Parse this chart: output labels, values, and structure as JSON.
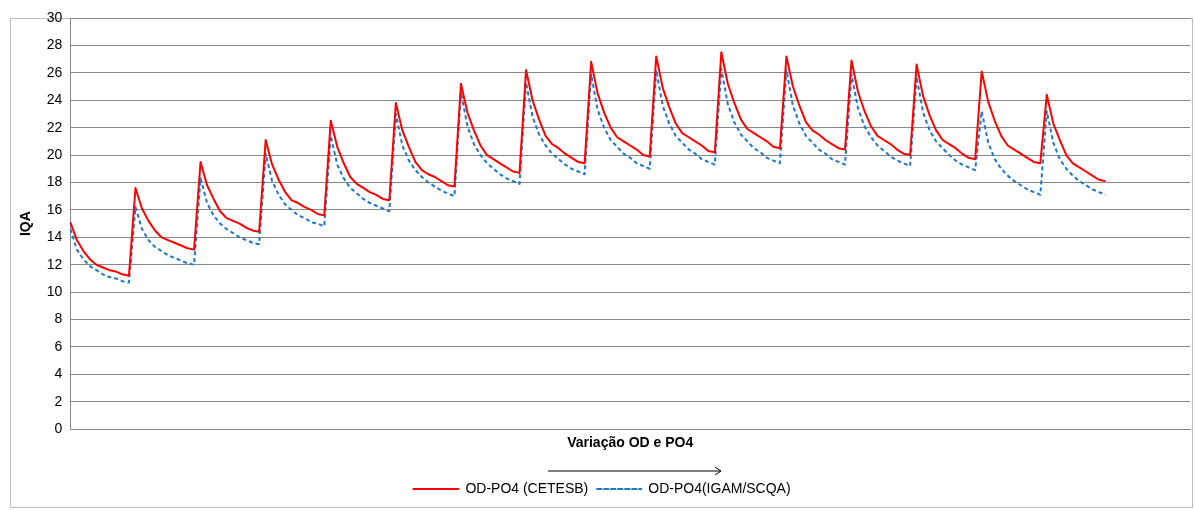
{
  "chart_data": {
    "type": "line",
    "xlabel": "Variação OD e PO4",
    "ylabel": "IQA",
    "categories": [
      null,
      null,
      null,
      null,
      null,
      null,
      null,
      null,
      null,
      null,
      null,
      null,
      null,
      null,
      null,
      null,
      null,
      null,
      null,
      null,
      null,
      null,
      null,
      null,
      null,
      null,
      null,
      null,
      null,
      null,
      null,
      null,
      null,
      null,
      null,
      null,
      null,
      null,
      null,
      null,
      null,
      null,
      null,
      null,
      null,
      null,
      null,
      null,
      null,
      null,
      null,
      null,
      null,
      null,
      null,
      null,
      null,
      null,
      null,
      null,
      null,
      null,
      null,
      null,
      null,
      null,
      null,
      null,
      null,
      null,
      null,
      null,
      null,
      null,
      null,
      null,
      null,
      null,
      null,
      null,
      null,
      null,
      null,
      null,
      null,
      null,
      null,
      null,
      null,
      null,
      null,
      null,
      null,
      null,
      null,
      null,
      null,
      null,
      null,
      null,
      null,
      null,
      null,
      null,
      null,
      null,
      null,
      null,
      null,
      null,
      null,
      null,
      null,
      null,
      null,
      null,
      null,
      null,
      null,
      null,
      null,
      null,
      null,
      null,
      null,
      null,
      null,
      null,
      null,
      null,
      null,
      null,
      null,
      null,
      null,
      null,
      null,
      null,
      null,
      null,
      null,
      null,
      null,
      null,
      null,
      null,
      null,
      null,
      null,
      null,
      null,
      null,
      null,
      null,
      null,
      null,
      null,
      null,
      null,
      null,
      null,
      null,
      null,
      null,
      null,
      null,
      null,
      null,
      null,
      null,
      null,
      null,
      null
    ],
    "series": [
      {
        "name": "OD-PO4 (CETESB)",
        "color": "#ff0000",
        "line_style": "solid",
        "values": [
          15.1,
          13.8,
          13.0,
          12.4,
          12.0,
          11.8,
          11.6,
          11.5,
          11.3,
          11.2,
          17.6,
          16.1,
          15.2,
          14.5,
          14.0,
          13.8,
          13.6,
          13.4,
          13.2,
          13.1,
          19.5,
          17.8,
          16.8,
          15.9,
          15.4,
          15.2,
          15.0,
          14.7,
          14.5,
          14.4,
          21.1,
          19.3,
          18.2,
          17.3,
          16.7,
          16.5,
          16.2,
          16.0,
          15.7,
          15.6,
          22.5,
          20.6,
          19.4,
          18.4,
          17.9,
          17.6,
          17.3,
          17.1,
          16.8,
          16.7,
          23.8,
          21.8,
          20.6,
          19.5,
          18.9,
          18.6,
          18.4,
          18.1,
          17.8,
          17.7,
          25.2,
          23.1,
          21.8,
          20.7,
          20.0,
          19.7,
          19.4,
          19.1,
          18.8,
          18.7,
          26.2,
          24.0,
          22.6,
          21.4,
          20.8,
          20.5,
          20.1,
          19.8,
          19.5,
          19.4,
          26.8,
          24.5,
          23.1,
          22.0,
          21.3,
          21.0,
          20.7,
          20.4,
          20.0,
          19.9,
          27.2,
          24.9,
          23.5,
          22.3,
          21.6,
          21.3,
          21.0,
          20.7,
          20.3,
          20.2,
          27.5,
          25.2,
          23.8,
          22.6,
          21.9,
          21.6,
          21.3,
          21.0,
          20.6,
          20.5,
          27.2,
          25.0,
          23.6,
          22.4,
          21.8,
          21.5,
          21.1,
          20.8,
          20.5,
          20.4,
          26.9,
          24.6,
          23.2,
          22.1,
          21.4,
          21.1,
          20.8,
          20.4,
          20.1,
          20.0,
          26.6,
          24.3,
          22.9,
          21.8,
          21.1,
          20.8,
          20.5,
          20.1,
          19.8,
          19.7,
          26.1,
          23.9,
          22.5,
          21.4,
          20.7,
          20.4,
          20.1,
          19.8,
          19.5,
          19.4,
          24.4,
          22.3,
          21.1,
          20.0,
          19.4,
          19.1,
          18.8,
          18.5,
          18.2,
          18.1,
          null,
          null,
          null,
          null,
          null,
          null,
          null,
          null,
          null,
          null,
          null,
          null,
          null
        ]
      },
      {
        "name": "OD-PO4(IGAM/SCQA)",
        "color": "#1f77c8",
        "line_style": "dashed",
        "values": [
          14.6,
          13.1,
          12.4,
          11.9,
          11.6,
          11.3,
          11.1,
          11.0,
          10.8,
          10.7,
          16.2,
          14.6,
          13.8,
          13.3,
          13.0,
          12.7,
          12.5,
          12.3,
          12.1,
          12.0,
          18.3,
          16.5,
          15.6,
          15.0,
          14.6,
          14.3,
          14.0,
          13.8,
          13.6,
          13.5,
          20.1,
          18.1,
          17.1,
          16.4,
          16.0,
          15.6,
          15.4,
          15.1,
          15.0,
          14.8,
          21.4,
          19.3,
          18.3,
          17.6,
          17.2,
          16.8,
          16.5,
          16.3,
          16.1,
          15.9,
          23.0,
          20.7,
          19.6,
          18.9,
          18.4,
          18.0,
          17.7,
          17.4,
          17.2,
          17.0,
          24.6,
          22.1,
          20.8,
          20.0,
          19.4,
          19.0,
          18.6,
          18.3,
          18.1,
          17.9,
          25.3,
          22.8,
          21.5,
          20.7,
          20.1,
          19.7,
          19.3,
          19.0,
          18.8,
          18.6,
          25.9,
          23.3,
          22.0,
          21.1,
          20.6,
          20.1,
          19.8,
          19.4,
          19.2,
          19.0,
          26.2,
          23.6,
          22.3,
          21.4,
          20.9,
          20.4,
          20.1,
          19.7,
          19.5,
          19.3,
          26.3,
          23.7,
          22.4,
          21.5,
          21.0,
          20.5,
          20.2,
          19.8,
          19.6,
          19.4,
          26.2,
          23.6,
          22.3,
          21.4,
          20.9,
          20.4,
          20.1,
          19.7,
          19.5,
          19.3,
          25.9,
          23.4,
          22.1,
          21.3,
          20.7,
          20.3,
          19.9,
          19.6,
          19.4,
          19.2,
          25.7,
          23.1,
          21.8,
          21.0,
          20.5,
          20.0,
          19.6,
          19.3,
          19.1,
          18.9,
          23.2,
          20.9,
          19.7,
          19.0,
          18.5,
          18.1,
          17.8,
          17.5,
          17.3,
          17.1,
          23.2,
          20.9,
          19.7,
          19.0,
          18.5,
          18.1,
          17.8,
          17.5,
          17.3,
          17.1,
          null,
          null,
          null,
          null,
          null,
          null,
          null,
          null,
          null,
          null,
          null,
          null,
          null
        ]
      }
    ],
    "ylim": [
      0,
      30
    ],
    "yticks": [
      0,
      2,
      4,
      6,
      8,
      10,
      12,
      14,
      16,
      18,
      20,
      22,
      24,
      26,
      28,
      30
    ],
    "grid": "y",
    "legend": "bottom",
    "marker": "none",
    "tick_labels": "y"
  }
}
